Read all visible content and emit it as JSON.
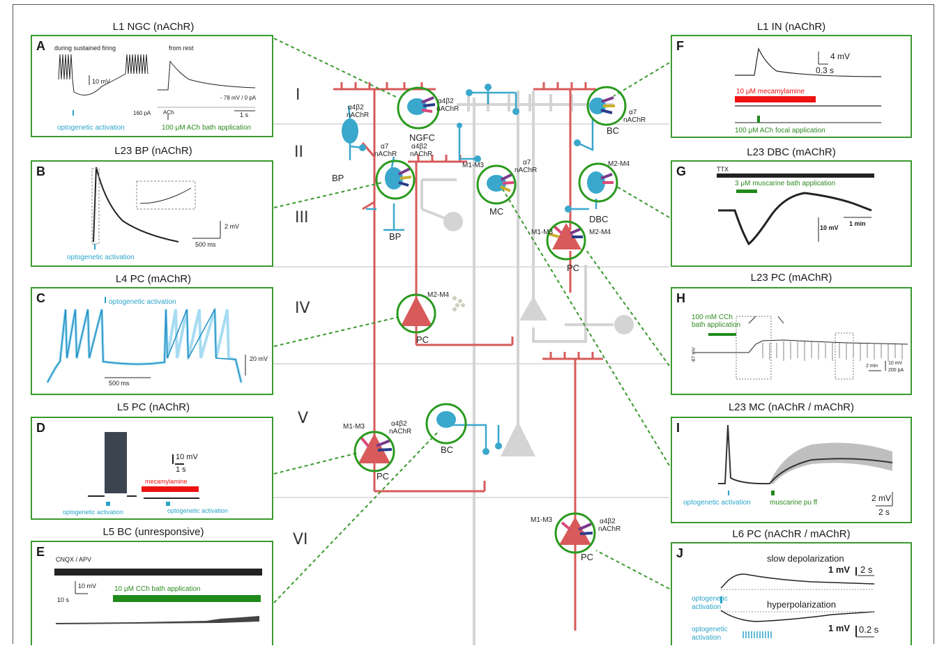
{
  "layers": [
    "I",
    "II",
    "III",
    "IV",
    "V",
    "VI"
  ],
  "panels": {
    "A": {
      "letter": "A",
      "title": "L1 NGC (nAChR)",
      "t1": "during sustained firing",
      "t2": "from rest",
      "scale": "10 mV",
      "current": "160 pA",
      "rest": "- 78 mV / 0 pA",
      "ach": "ACh",
      "time": "1 s",
      "opto": "optogenetic activation",
      "bath": "100   μM ACh bath application"
    },
    "B": {
      "letter": "B",
      "title": "L23 BP (nAChR)",
      "scale_v": "2 mV",
      "scale_t": "500 ms",
      "opto": "optogenetic activation"
    },
    "C": {
      "letter": "C",
      "title": "L4 PC (mAChR)",
      "opto": "optogenetic activation",
      "scale_v": "20 mV",
      "scale_t": "500 ms"
    },
    "D": {
      "letter": "D",
      "title": "L5 PC (nAChR)",
      "scale_v": "10 mV",
      "scale_t": "1 s",
      "drug": "mecamylamine",
      "opto1": "optogenetic activation",
      "opto2": "optogenetic activation"
    },
    "E": {
      "letter": "E",
      "title": "L5 BC (unresponsive)",
      "block": "CNQX / APV",
      "scale_v": "10 mV",
      "scale_t": "10 s",
      "bath": "10  μM CCh bath application"
    },
    "F": {
      "letter": "F",
      "title": "L1 IN (nAChR)",
      "scale_v": "4 mV",
      "scale_t": "0.3 s",
      "drug": "10   μM mecamylamine",
      "focal": "100   μM ACh focal application"
    },
    "G": {
      "letter": "G",
      "title": "L23 DBC (mAChR)",
      "ttx": "TTX",
      "bath": "3  μM muscarine bath application",
      "scale_v": "10 mV",
      "scale_t": "1 min"
    },
    "H": {
      "letter": "H",
      "title": "L23 PC (mAChR)",
      "bath1": "100 mM CCh",
      "bath2": "bath application",
      "vm": "-67 mV",
      "scale_t": "2 min",
      "scale_v": "10 mV",
      "scale_i": "200 pA"
    },
    "I": {
      "letter": "I",
      "title": "L23 MC (nAChR / mAChR)",
      "opto": "optogenetic activation",
      "puff": "muscarine pu       ff",
      "scale_v": "2 mV",
      "scale_t": "2 s"
    },
    "J": {
      "letter": "J",
      "title": "L6 PC (nAChR / mAChR)",
      "slow": "slow depolarization",
      "hyper": "hyperpolarization",
      "opto1a": "optogenetic",
      "opto1b": "activation",
      "opto2a": "optogenetic",
      "opto2b": "activation",
      "scale_v1": "1 mV",
      "scale_t1": "2 s",
      "scale_v2": "1 mV",
      "scale_t2": "0.2 s"
    }
  },
  "cells": {
    "ngfc": "NGFC",
    "ngfc_r1": "α4β2",
    "ngfc_r2": "nAChR",
    "bc1": "BC",
    "bc1_r1": "α7",
    "bc1_r2": "nAChR",
    "bp_top": "BP",
    "bp_top_r1": "α4β2",
    "bp_top_r2": "nAChR",
    "bp": "BP",
    "bp_r1": "α7",
    "bp_r2": "nAChR",
    "bp_r3": "α4β2",
    "bp_r4": "nAChR",
    "mc": "MC",
    "mc_r0": "M1-M3",
    "mc_r1": "α7",
    "mc_r2": "nAChR",
    "dbc": "DBC",
    "dbc_r": "M2-M4",
    "pc23": "PC",
    "pc23_r1": "M1-M3",
    "pc23_r2": "M2-M4",
    "pc4": "PC",
    "pc4_r": "M2-M4",
    "pc5": "PC",
    "pc5_r1": "M1-M3",
    "pc5_r2": "α4β2",
    "pc5_r3": "nAChR",
    "bc5": "BC",
    "pc6": "PC",
    "pc6_r1": "M1-M3",
    "pc6_r2": "α4β2",
    "pc6_r3": "nAChR"
  },
  "colors": {
    "panel_border": "#3a9a2e",
    "cyan": "#3aa7cc",
    "red": "#d85a5a",
    "grey": "#cfcfcf",
    "ring": "#2a9a1e"
  }
}
